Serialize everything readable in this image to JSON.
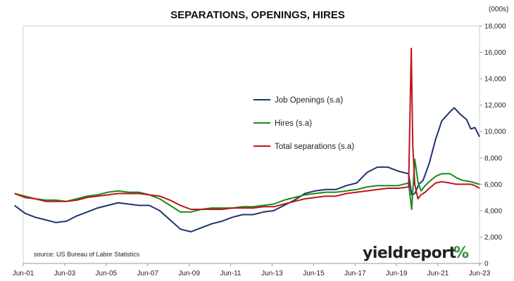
{
  "chart_data": {
    "type": "line",
    "title": "SEPARATIONS, OPENINGS, HIRES",
    "y_unit_label": "(000s)",
    "source": "source: US Bureau of Labor Statistics",
    "logo_text": "yieldreport",
    "logo_symbol": "%",
    "x_ticks": [
      "Jun-01",
      "Jun-03",
      "Jun-05",
      "Jun-07",
      "Jun-09",
      "Jun-11",
      "Jun-13",
      "Jun-15",
      "Jun-17",
      "Jun-19",
      "Jun-21",
      "Jun-23"
    ],
    "x_tick_values": [
      2001.42,
      2003.42,
      2005.42,
      2007.42,
      2009.42,
      2011.42,
      2013.42,
      2015.42,
      2017.42,
      2019.42,
      2021.42,
      2023.42
    ],
    "xlim": [
      2001.42,
      2023.42
    ],
    "ylim": [
      0,
      18000
    ],
    "y_ticks": [
      0,
      2000,
      4000,
      6000,
      8000,
      10000,
      12000,
      14000,
      16000,
      18000
    ],
    "y_tick_labels": [
      "0",
      "2,000",
      "4,000",
      "6,000",
      "8,000",
      "10,000",
      "12,000",
      "14,000",
      "16,000",
      "18,000"
    ],
    "y_axis_position": "right",
    "grid": false,
    "legend_position": "center",
    "series": [
      {
        "name": "Job Openings (s.a)",
        "color": "#1f3370",
        "x": [
          2001.0,
          2001.5,
          2002.0,
          2002.5,
          2003.0,
          2003.5,
          2004.0,
          2004.5,
          2005.0,
          2005.5,
          2006.0,
          2006.5,
          2007.0,
          2007.5,
          2008.0,
          2008.5,
          2009.0,
          2009.5,
          2010.0,
          2010.5,
          2011.0,
          2011.5,
          2012.0,
          2012.5,
          2013.0,
          2013.5,
          2014.0,
          2014.5,
          2015.0,
          2015.5,
          2016.0,
          2016.5,
          2017.0,
          2017.5,
          2018.0,
          2018.5,
          2019.0,
          2019.5,
          2020.0,
          2020.15,
          2020.3,
          2020.5,
          2020.7,
          2021.0,
          2021.3,
          2021.6,
          2022.0,
          2022.2,
          2022.5,
          2022.8,
          2023.0,
          2023.2,
          2023.42
        ],
        "y": [
          4400,
          3800,
          3500,
          3300,
          3100,
          3200,
          3600,
          3900,
          4200,
          4400,
          4600,
          4500,
          4400,
          4400,
          4000,
          3300,
          2600,
          2400,
          2700,
          3000,
          3200,
          3500,
          3700,
          3700,
          3900,
          4000,
          4400,
          4800,
          5300,
          5500,
          5600,
          5600,
          5900,
          6100,
          6900,
          7300,
          7300,
          7000,
          6800,
          5200,
          5300,
          6000,
          6300,
          7600,
          9400,
          10800,
          11500,
          11800,
          11300,
          10900,
          10200,
          10300,
          9600
        ]
      },
      {
        "name": "Hires (s.a)",
        "color": "#1a8a1a",
        "x": [
          2001.0,
          2001.5,
          2002.0,
          2002.5,
          2003.0,
          2003.5,
          2004.0,
          2004.5,
          2005.0,
          2005.5,
          2006.0,
          2006.5,
          2007.0,
          2007.5,
          2008.0,
          2008.5,
          2009.0,
          2009.5,
          2010.0,
          2010.5,
          2011.0,
          2011.5,
          2012.0,
          2012.5,
          2013.0,
          2013.5,
          2014.0,
          2014.5,
          2015.0,
          2015.5,
          2016.0,
          2016.5,
          2017.0,
          2017.5,
          2018.0,
          2018.5,
          2019.0,
          2019.5,
          2020.0,
          2020.15,
          2020.3,
          2020.45,
          2020.6,
          2020.8,
          2021.0,
          2021.3,
          2021.6,
          2022.0,
          2022.3,
          2022.6,
          2023.0,
          2023.2,
          2023.42
        ],
        "y": [
          5300,
          5100,
          4900,
          4800,
          4800,
          4700,
          4900,
          5100,
          5200,
          5400,
          5500,
          5400,
          5400,
          5200,
          4900,
          4400,
          3900,
          3900,
          4100,
          4200,
          4200,
          4200,
          4300,
          4300,
          4400,
          4500,
          4800,
          5000,
          5200,
          5300,
          5400,
          5400,
          5500,
          5600,
          5800,
          5900,
          5900,
          5900,
          6100,
          4100,
          7900,
          6200,
          5500,
          5900,
          6200,
          6600,
          6800,
          6800,
          6500,
          6300,
          6200,
          6100,
          6000
        ]
      },
      {
        "name": "Total separations (s.a)",
        "color": "#c0141c",
        "x": [
          2001.0,
          2001.5,
          2002.0,
          2002.5,
          2003.0,
          2003.5,
          2004.0,
          2004.5,
          2005.0,
          2005.5,
          2006.0,
          2006.5,
          2007.0,
          2007.5,
          2008.0,
          2008.5,
          2009.0,
          2009.5,
          2010.0,
          2010.5,
          2011.0,
          2011.5,
          2012.0,
          2012.5,
          2013.0,
          2013.5,
          2014.0,
          2014.5,
          2015.0,
          2015.5,
          2016.0,
          2016.5,
          2017.0,
          2017.5,
          2018.0,
          2018.5,
          2019.0,
          2019.5,
          2020.0,
          2020.13,
          2020.2,
          2020.3,
          2020.45,
          2020.6,
          2020.8,
          2021.0,
          2021.3,
          2021.6,
          2022.0,
          2022.3,
          2022.6,
          2023.0,
          2023.2,
          2023.42
        ],
        "y": [
          5300,
          5000,
          4900,
          4700,
          4700,
          4700,
          4800,
          5000,
          5100,
          5200,
          5300,
          5300,
          5300,
          5200,
          5100,
          4800,
          4400,
          4100,
          4100,
          4100,
          4100,
          4200,
          4200,
          4200,
          4300,
          4300,
          4500,
          4700,
          4900,
          5000,
          5100,
          5100,
          5300,
          5400,
          5500,
          5600,
          5700,
          5700,
          5800,
          16300,
          9000,
          6000,
          4900,
          5200,
          5400,
          5700,
          6100,
          6200,
          6100,
          6000,
          6000,
          6000,
          5900,
          5700
        ]
      }
    ]
  }
}
